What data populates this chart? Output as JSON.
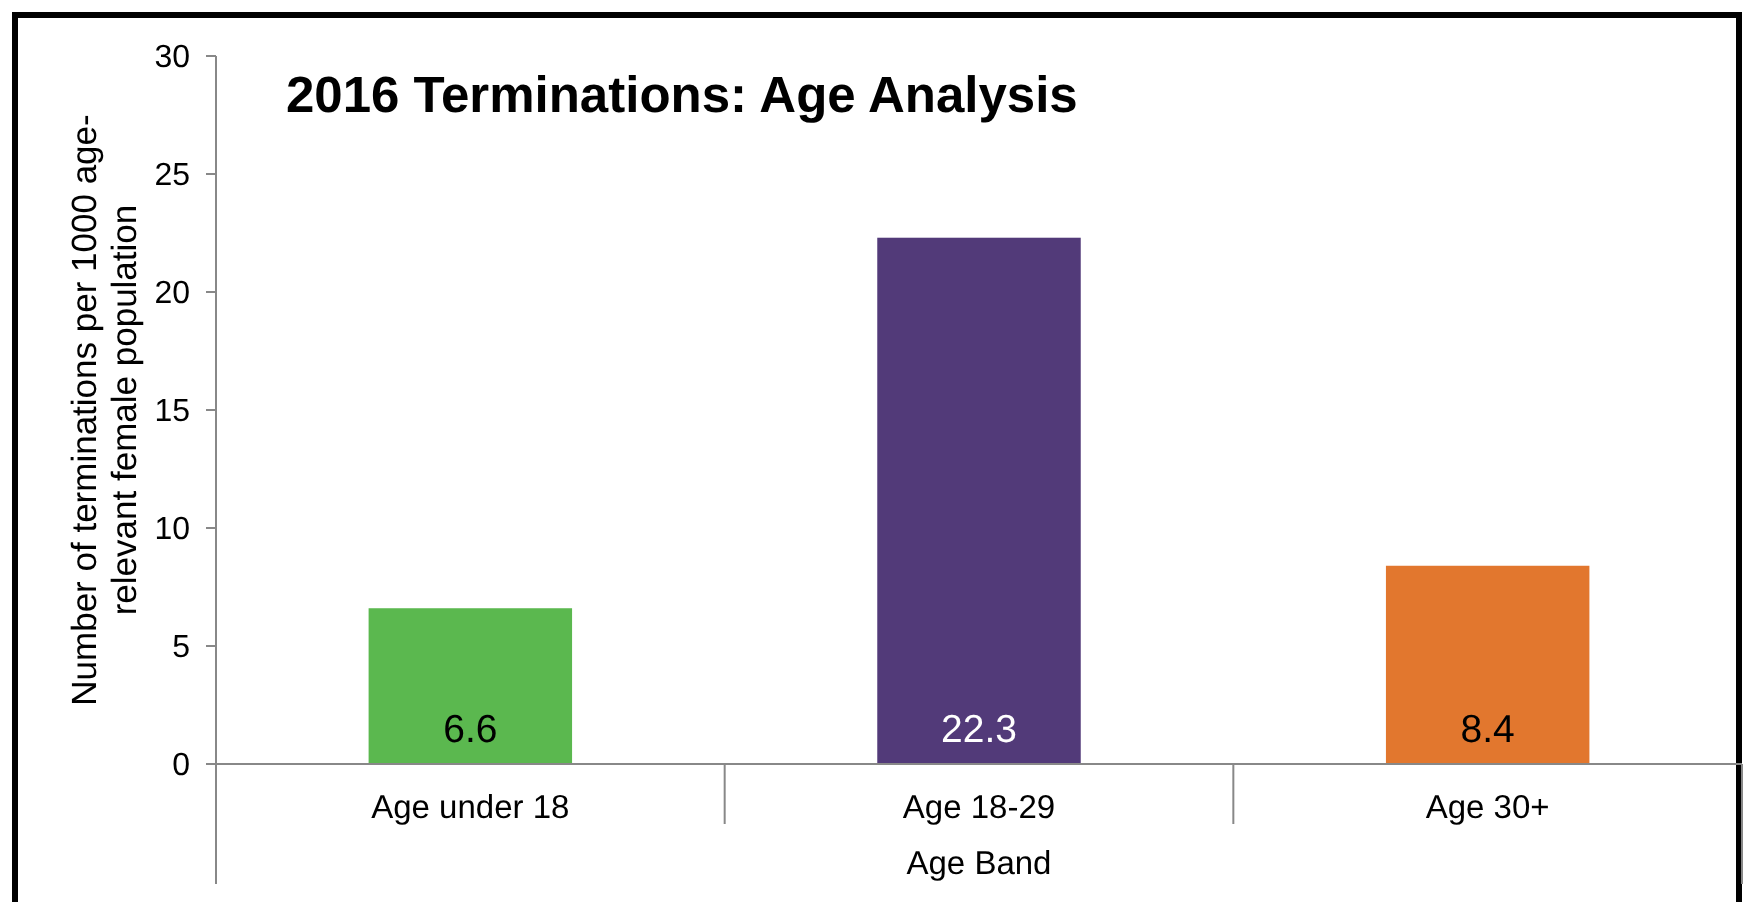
{
  "chart_data": {
    "type": "bar",
    "title": "2016 Terminations: Age Analysis",
    "xlabel": "Age Band",
    "ylabel": "Number of terminations per 1000 age-relevant female population",
    "categories": [
      "Age under 18",
      "Age 18-29",
      "Age 30+"
    ],
    "values": [
      6.6,
      22.3,
      8.4
    ],
    "colors": [
      "#5bb84f",
      "#523a79",
      "#e2772e"
    ],
    "ylim": [
      0,
      30
    ],
    "yticks": [
      0,
      5,
      10,
      15,
      20,
      25,
      30
    ],
    "data_labels": true
  }
}
